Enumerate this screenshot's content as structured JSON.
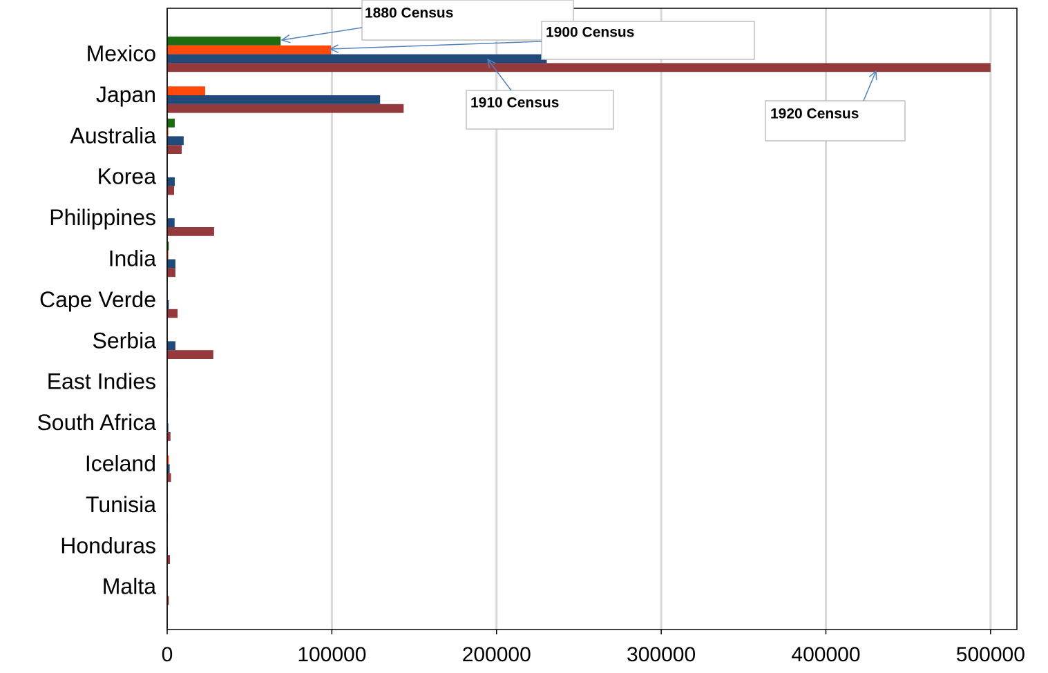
{
  "chart_data": {
    "type": "bar",
    "orientation": "horizontal",
    "categories": [
      "Mexico",
      "Japan",
      "Australia",
      "Korea",
      "Philippines",
      "India",
      "Cape Verde",
      "Serbia",
      "East Indies",
      "South Africa",
      "Iceland",
      "Tunisia",
      "Honduras",
      "Malta"
    ],
    "series": [
      {
        "name": "1880 Census",
        "color": "#1e6b12",
        "values": [
          68900,
          100,
          4600,
          100,
          100,
          1000,
          300,
          100,
          100,
          100,
          200,
          100,
          100,
          100
        ]
      },
      {
        "name": "1900 Census",
        "color": "#ff4a0a",
        "values": [
          99500,
          23100,
          700,
          100,
          200,
          700,
          300,
          200,
          100,
          200,
          1000,
          100,
          100,
          100
        ]
      },
      {
        "name": "1910 Census",
        "color": "#1f4a7a",
        "values": [
          230500,
          129300,
          10000,
          4600,
          4500,
          5000,
          1000,
          5000,
          300,
          700,
          1500,
          200,
          400,
          300
        ]
      },
      {
        "name": "1920 Census",
        "color": "#953a3c",
        "values": [
          500000,
          143600,
          8800,
          4200,
          28500,
          5000,
          6300,
          28000,
          400,
          2000,
          2300,
          400,
          1700,
          1000
        ]
      }
    ],
    "xlim": [
      0,
      516000
    ],
    "xticks": [
      0,
      100000,
      200000,
      300000,
      400000,
      500000
    ],
    "grid": true
  }
}
